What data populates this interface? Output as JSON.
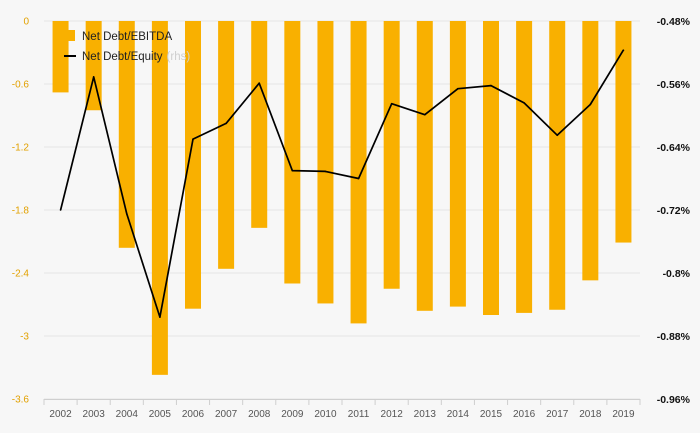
{
  "chart_data": {
    "type": "bar",
    "categories": [
      "2002",
      "2003",
      "2004",
      "2005",
      "2006",
      "2007",
      "2008",
      "2009",
      "2010",
      "2011",
      "2012",
      "2013",
      "2014",
      "2015",
      "2016",
      "2017",
      "2018",
      "2019"
    ],
    "series": [
      {
        "name": "Net Debt/EBITDA",
        "kind": "bar",
        "axis": "left",
        "color": "#f9b000",
        "values": [
          -0.68,
          -0.85,
          -2.16,
          -3.37,
          -2.74,
          -2.36,
          -1.97,
          -2.5,
          -2.69,
          -2.88,
          -2.55,
          -2.76,
          -2.72,
          -2.8,
          -2.78,
          -2.75,
          -2.47,
          -2.11
        ]
      },
      {
        "name": "Net Debt/Equity",
        "kind": "line",
        "axis": "right",
        "color": "#000000",
        "values": [
          -0.72,
          -0.551,
          -0.725,
          -0.856,
          -0.63,
          -0.61,
          -0.559,
          -0.67,
          -0.671,
          -0.68,
          -0.585,
          -0.599,
          -0.566,
          -0.562,
          -0.584,
          -0.625,
          -0.586,
          -0.517
        ]
      }
    ],
    "left_axis": {
      "ticks": [
        0,
        -0.6,
        -1.2,
        -1.8,
        -2.4,
        -3,
        -3.6
      ],
      "tick_labels": [
        "0",
        "-0.6",
        "-1.2",
        "-1.8",
        "-2.4",
        "-3",
        "-3.6"
      ],
      "range": [
        -3.6,
        0
      ]
    },
    "right_axis": {
      "ticks": [
        -0.48,
        -0.56,
        -0.64,
        -0.72,
        -0.8,
        -0.88,
        -0.96
      ],
      "tick_labels": [
        "-0.48%",
        "-0.56%",
        "-0.64%",
        "-0.72%",
        "-0.8%",
        "-0.88%",
        "-0.96%"
      ],
      "range": [
        -0.96,
        -0.48
      ]
    },
    "legend": {
      "position": "top-left",
      "items": [
        {
          "label": "Net Debt/EBITDA",
          "marker": "square"
        },
        {
          "label": "Net Debt/Equity",
          "marker": "line",
          "faded_suffix": "(rhs)"
        }
      ]
    },
    "grid": true,
    "title": "",
    "xlabel": "",
    "ylabel": ""
  }
}
